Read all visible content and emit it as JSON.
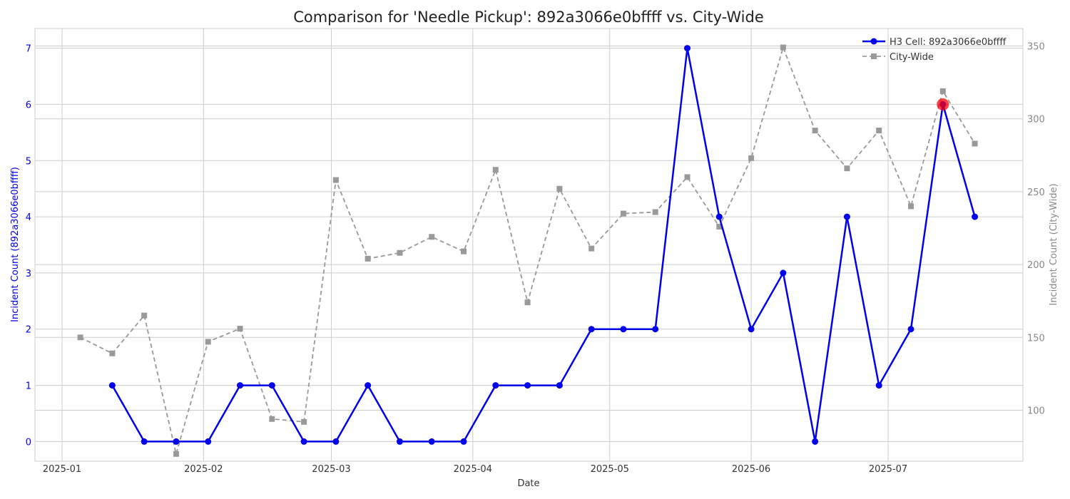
{
  "chart_data": {
    "type": "line",
    "title": "Comparison for 'Needle Pickup': 892a3066e0bffff vs. City-Wide",
    "xlabel": "Date",
    "ylabel_left": "Incident Count (892a3066e0bffff)",
    "ylabel_right": "Incident Count (City-Wide)",
    "x_ticks": [
      "2025-01",
      "2025-02",
      "2025-03",
      "2025-04",
      "2025-05",
      "2025-06",
      "2025-07"
    ],
    "y_left_ticks": [
      0,
      1,
      2,
      3,
      4,
      5,
      6,
      7
    ],
    "y_right_ticks": [
      100,
      150,
      200,
      250,
      300,
      350
    ],
    "y_left_lim": [
      -0.35,
      7.35
    ],
    "y_right_lim": [
      65,
      362
    ],
    "grid": true,
    "legend_position": "top-right",
    "legend": [
      "H3 Cell: 892a3066e0bffff",
      "City-Wide"
    ],
    "series": [
      {
        "name": "H3 Cell: 892a3066e0bffff",
        "axis": "left",
        "color": "#0000ee",
        "style": "solid",
        "marker": "circle",
        "x": [
          "2025-01-12",
          "2025-01-19",
          "2025-01-26",
          "2025-02-02",
          "2025-02-09",
          "2025-02-16",
          "2025-02-23",
          "2025-03-02",
          "2025-03-09",
          "2025-03-16",
          "2025-03-23",
          "2025-03-30",
          "2025-04-06",
          "2025-04-13",
          "2025-04-20",
          "2025-04-27",
          "2025-05-04",
          "2025-05-11",
          "2025-05-18",
          "2025-05-25",
          "2025-06-01",
          "2025-06-08",
          "2025-06-15",
          "2025-06-22",
          "2025-06-29",
          "2025-07-06",
          "2025-07-13",
          "2025-07-20"
        ],
        "values": [
          1,
          0,
          0,
          0,
          1,
          1,
          0,
          0,
          1,
          0,
          0,
          0,
          1,
          1,
          1,
          2,
          2,
          2,
          7,
          4,
          2,
          3,
          0,
          4,
          1,
          2,
          6,
          4
        ]
      },
      {
        "name": "City-Wide",
        "axis": "right",
        "color": "#999999",
        "style": "dashed",
        "marker": "square",
        "x": [
          "2025-01-05",
          "2025-01-12",
          "2025-01-19",
          "2025-01-26",
          "2025-02-02",
          "2025-02-09",
          "2025-02-16",
          "2025-02-23",
          "2025-03-02",
          "2025-03-09",
          "2025-03-16",
          "2025-03-23",
          "2025-03-30",
          "2025-04-06",
          "2025-04-13",
          "2025-04-20",
          "2025-04-27",
          "2025-05-04",
          "2025-05-11",
          "2025-05-18",
          "2025-05-25",
          "2025-06-01",
          "2025-06-08",
          "2025-06-15",
          "2025-06-22",
          "2025-06-29",
          "2025-07-06",
          "2025-07-13",
          "2025-07-20"
        ],
        "values": [
          150,
          139,
          165,
          70,
          147,
          156,
          94,
          92,
          258,
          204,
          208,
          219,
          209,
          265,
          174,
          252,
          211,
          235,
          236,
          260,
          226,
          273,
          349,
          292,
          266,
          292,
          240,
          319,
          283
        ]
      }
    ],
    "highlight": {
      "x": "2025-07-13",
      "value": 6,
      "axis": "left",
      "color": "#ff0000"
    }
  }
}
